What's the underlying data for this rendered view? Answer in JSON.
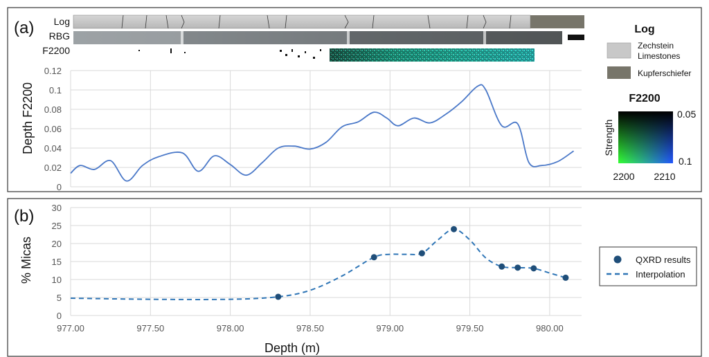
{
  "panel_a": {
    "label": "(a)",
    "tracks": {
      "log": "Log",
      "rbg": "RBG",
      "f2200": "F2200"
    },
    "legend": {
      "title": "Log",
      "items": [
        {
          "label_lines": [
            "Zechstein",
            "Limestones"
          ],
          "color": "#c8c8c8"
        },
        {
          "label_lines": [
            "Kupferschiefer"
          ],
          "color": "#77756a"
        }
      ]
    },
    "colorbar": {
      "title": "F2200",
      "ylabel": "Strength",
      "top_value": "0.05",
      "bottom_value": "0.1",
      "x_left": "2200",
      "x_right": "2210"
    }
  },
  "panel_b": {
    "label": "(b)",
    "legend": {
      "items": [
        {
          "label": "QXRD results",
          "marker": "dot"
        },
        {
          "label": "Interpolation",
          "marker": "dash"
        }
      ]
    }
  },
  "colors": {
    "line_a": "#4a78c8",
    "marker_b": "#1f4e79",
    "line_b": "#2e75b6",
    "frame": "#333333"
  },
  "chart_data": [
    {
      "type": "line",
      "ylabel": "Depth F2200",
      "xlabel": "",
      "xlim": [
        977.0,
        980.2
      ],
      "ylim": [
        0,
        0.12
      ],
      "y_ticks": [
        "0",
        "0.02",
        "0.04",
        "0.06",
        "0.08",
        "0.1",
        "0.12"
      ],
      "grid": true,
      "series": [
        {
          "x": [
            977.0,
            977.06,
            977.15,
            977.25,
            977.35,
            977.45,
            977.55,
            977.7,
            977.8,
            977.9,
            978.0,
            978.1,
            978.2,
            978.3,
            978.4,
            978.5,
            978.6,
            978.7,
            978.8,
            978.9,
            978.98,
            979.05,
            979.15,
            979.25,
            979.35,
            979.45,
            979.55,
            979.6,
            979.7,
            979.8,
            979.87,
            979.95,
            980.05,
            980.15
          ],
          "y": [
            0.014,
            0.022,
            0.018,
            0.027,
            0.006,
            0.022,
            0.031,
            0.035,
            0.016,
            0.032,
            0.023,
            0.012,
            0.025,
            0.04,
            0.042,
            0.039,
            0.046,
            0.062,
            0.067,
            0.077,
            0.071,
            0.063,
            0.071,
            0.066,
            0.075,
            0.088,
            0.104,
            0.1,
            0.063,
            0.065,
            0.025,
            0.022,
            0.026,
            0.037
          ]
        }
      ]
    },
    {
      "type": "scatter",
      "xlabel": "Depth (m)",
      "ylabel": "% Micas",
      "xlim": [
        977.0,
        980.2
      ],
      "ylim": [
        0,
        30
      ],
      "x_ticks": [
        "977.00",
        "977.50",
        "978.00",
        "978.50",
        "979.00",
        "979.50",
        "980.00"
      ],
      "y_ticks": [
        "0",
        "5",
        "10",
        "15",
        "20",
        "25",
        "30"
      ],
      "grid": true,
      "series": [
        {
          "name": "QXRD results",
          "x": [
            978.3,
            978.9,
            979.2,
            979.4,
            979.7,
            979.8,
            979.9,
            980.1
          ],
          "y": [
            5.2,
            16.2,
            17.3,
            24.0,
            13.6,
            13.3,
            13.1,
            10.5
          ]
        },
        {
          "name": "Interpolation",
          "x": [
            977.0,
            977.5,
            978.0,
            978.3,
            978.5,
            978.7,
            978.9,
            979.0,
            979.1,
            979.2,
            979.3,
            979.4,
            979.5,
            979.6,
            979.7,
            979.8,
            979.9,
            980.0,
            980.1
          ],
          "y": [
            4.8,
            4.5,
            4.5,
            5.2,
            7.0,
            11.0,
            16.2,
            17.0,
            17.0,
            17.3,
            21.0,
            24.0,
            21.0,
            16.0,
            13.6,
            13.3,
            13.1,
            11.8,
            10.5
          ]
        }
      ]
    }
  ]
}
